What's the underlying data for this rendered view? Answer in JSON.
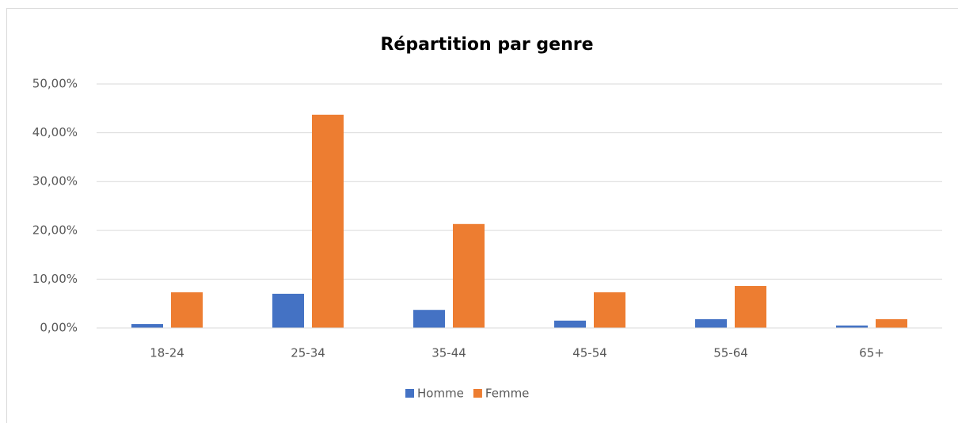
{
  "chart_data": {
    "type": "bar",
    "title": "Répartition par genre",
    "categories": [
      "18-24",
      "25-34",
      "35-44",
      "45-54",
      "55-64",
      "65+"
    ],
    "series": [
      {
        "name": "Homme",
        "color": "#4472c4",
        "values": [
          0.8,
          7.0,
          3.7,
          1.5,
          1.8,
          0.5
        ]
      },
      {
        "name": "Femme",
        "color": "#ed7d31",
        "values": [
          7.3,
          43.7,
          21.3,
          7.3,
          8.6,
          1.8
        ]
      }
    ],
    "ylim": [
      0,
      50
    ],
    "yticks": [
      {
        "value": 0,
        "label": "0,00%"
      },
      {
        "value": 10,
        "label": "10,00%"
      },
      {
        "value": 20,
        "label": "20,00%"
      },
      {
        "value": 30,
        "label": "30,00%"
      },
      {
        "value": 40,
        "label": "40,00%"
      },
      {
        "value": 50,
        "label": "50,00%"
      }
    ],
    "grid": true,
    "legend": "bottom"
  }
}
